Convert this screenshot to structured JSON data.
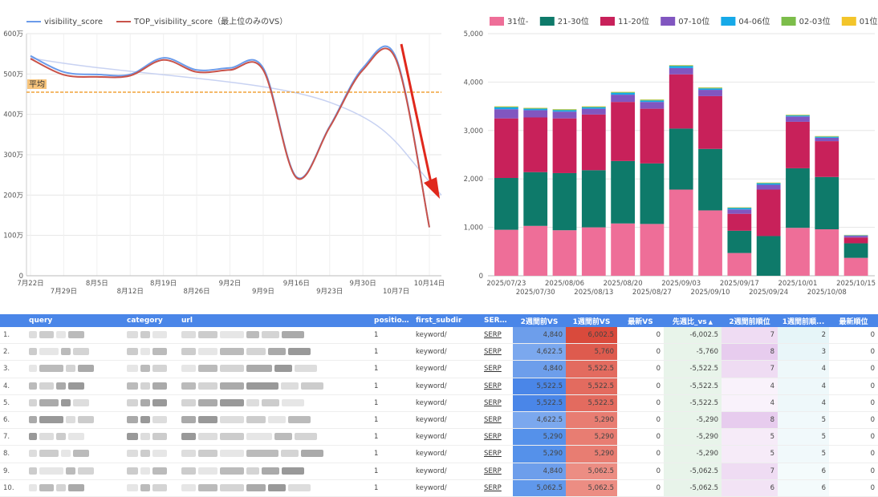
{
  "line_chart": {
    "legend": [
      {
        "name": "visibility_score",
        "color": "#6b9bea"
      },
      {
        "name": "TOP_visibility_score（最上位のみのVS）",
        "color": "#c9534a"
      }
    ],
    "avg_label": "平均",
    "y_ticks": [
      "600万",
      "500万",
      "400万",
      "300万",
      "200万",
      "100万",
      "0"
    ],
    "x_ticks_top": [
      "7月22日",
      "8月5日",
      "8月19日",
      "9月2日",
      "9月16日",
      "9月30日",
      "10月14日"
    ],
    "x_ticks_bottom": [
      "7月29日",
      "8月12日",
      "8月26日",
      "9月9日",
      "9月23日",
      "10月7日"
    ],
    "chart_data": {
      "type": "line",
      "ylim": [
        0,
        6000000
      ],
      "average": 4550000,
      "x": [
        "7/22",
        "7/29",
        "8/5",
        "8/12",
        "8/19",
        "8/26",
        "9/2",
        "9/9",
        "9/16",
        "9/23",
        "9/30",
        "10/7",
        "10/14"
      ],
      "series": [
        {
          "name": "visibility_score",
          "values": [
            5450000,
            5050000,
            4990000,
            4990000,
            5400000,
            5100000,
            5150000,
            5150000,
            2450000,
            3700000,
            5150000,
            5400000,
            1200000
          ]
        },
        {
          "name": "TOP_visibility_score（最上位のみのVS）",
          "values": [
            5380000,
            4980000,
            4930000,
            4960000,
            5350000,
            5050000,
            5100000,
            5100000,
            2430000,
            3680000,
            5100000,
            5350000,
            1200000
          ]
        }
      ]
    }
  },
  "bar_chart": {
    "legend": [
      {
        "name": "31位-",
        "color": "#ee6e98"
      },
      {
        "name": "21-30位",
        "color": "#0e7a6a"
      },
      {
        "name": "11-20位",
        "color": "#c8215a"
      },
      {
        "name": "07-10位",
        "color": "#8156c0"
      },
      {
        "name": "04-06位",
        "color": "#16a9e8"
      },
      {
        "name": "02-03位",
        "color": "#7cbd4a"
      },
      {
        "name": "01位",
        "color": "#f3c52a"
      }
    ],
    "y_ticks": [
      "5,000",
      "4,000",
      "3,000",
      "2,000",
      "1,000",
      "0"
    ],
    "x_ticks_top": [
      "2025/07/23",
      "2025/08/06",
      "2025/08/20",
      "2025/09/03",
      "2025/09/17",
      "2025/10/01",
      "2025/10/15"
    ],
    "x_ticks_bottom": [
      "2025/07/30",
      "2025/08/13",
      "2025/08/27",
      "2025/09/10",
      "2025/09/24",
      "2025/10/08"
    ],
    "chart_data": {
      "type": "bar",
      "stacked": true,
      "ylim": [
        0,
        5000
      ],
      "categories": [
        "2025/07/23",
        "2025/07/30",
        "2025/08/06",
        "2025/08/13",
        "2025/08/20",
        "2025/08/27",
        "2025/09/03",
        "2025/09/10",
        "2025/09/17",
        "2025/09/24",
        "2025/10/01",
        "2025/10/08",
        "2025/10/15"
      ],
      "series": [
        {
          "name": "31位-",
          "values": [
            950,
            1030,
            940,
            1000,
            1080,
            1070,
            1780,
            1350,
            470,
            0,
            990,
            960,
            370
          ]
        },
        {
          "name": "21-30位",
          "values": [
            1070,
            1110,
            1180,
            1180,
            1290,
            1250,
            1260,
            1270,
            460,
            820,
            1230,
            1080,
            300
          ]
        },
        {
          "name": "11-20位",
          "values": [
            1230,
            1130,
            1130,
            1150,
            1220,
            1130,
            1120,
            1090,
            350,
            960,
            960,
            740,
            120
          ]
        },
        {
          "name": "07-10位",
          "values": [
            190,
            150,
            140,
            120,
            150,
            140,
            130,
            130,
            90,
            100,
            110,
            70,
            35
          ]
        },
        {
          "name": "04-06位",
          "values": [
            40,
            30,
            30,
            30,
            40,
            30,
            40,
            30,
            30,
            30,
            20,
            20,
            10
          ]
        },
        {
          "name": "02-03位",
          "values": [
            15,
            15,
            15,
            15,
            15,
            15,
            15,
            15,
            10,
            10,
            10,
            10,
            5
          ]
        },
        {
          "name": "01位",
          "values": [
            5,
            5,
            5,
            5,
            5,
            5,
            5,
            5,
            5,
            5,
            5,
            5,
            5
          ]
        }
      ]
    }
  },
  "table": {
    "columns": [
      "",
      "query",
      "category",
      "url",
      "position...",
      "first_subdir",
      "SERP...",
      "2週間前VS",
      "1週間前VS",
      "最新VS",
      "先週比_vs",
      "2週間前順位",
      "1週間前順...",
      "最新順位"
    ],
    "sort_icon": "▲",
    "rows": [
      {
        "idx": "1.",
        "position": "1",
        "subdir": "keyword/",
        "serp": "SERP",
        "vs2": "4,840",
        "vs1": "6,002.5",
        "vs0": "0",
        "diff": "-6,002.5",
        "r2": "7",
        "r1": "2",
        "r0": "0"
      },
      {
        "idx": "2.",
        "position": "1",
        "subdir": "keyword/",
        "serp": "SERP",
        "vs2": "4,622.5",
        "vs1": "5,760",
        "vs0": "0",
        "diff": "-5,760",
        "r2": "8",
        "r1": "3",
        "r0": "0"
      },
      {
        "idx": "3.",
        "position": "1",
        "subdir": "keyword/",
        "serp": "SERP",
        "vs2": "4,840",
        "vs1": "5,522.5",
        "vs0": "0",
        "diff": "-5,522.5",
        "r2": "7",
        "r1": "4",
        "r0": "0"
      },
      {
        "idx": "4.",
        "position": "1",
        "subdir": "keyword/",
        "serp": "SERP",
        "vs2": "5,522.5",
        "vs1": "5,522.5",
        "vs0": "0",
        "diff": "-5,522.5",
        "r2": "4",
        "r1": "4",
        "r0": "0"
      },
      {
        "idx": "5.",
        "position": "1",
        "subdir": "keyword/",
        "serp": "SERP",
        "vs2": "5,522.5",
        "vs1": "5,522.5",
        "vs0": "0",
        "diff": "-5,522.5",
        "r2": "4",
        "r1": "4",
        "r0": "0"
      },
      {
        "idx": "6.",
        "position": "1",
        "subdir": "keyword/",
        "serp": "SERP",
        "vs2": "4,622.5",
        "vs1": "5,290",
        "vs0": "0",
        "diff": "-5,290",
        "r2": "8",
        "r1": "5",
        "r0": "0"
      },
      {
        "idx": "7.",
        "position": "1",
        "subdir": "keyword/",
        "serp": "SERP",
        "vs2": "5,290",
        "vs1": "5,290",
        "vs0": "0",
        "diff": "-5,290",
        "r2": "5",
        "r1": "5",
        "r0": "0"
      },
      {
        "idx": "8.",
        "position": "1",
        "subdir": "keyword/",
        "serp": "SERP",
        "vs2": "5,290",
        "vs1": "5,290",
        "vs0": "0",
        "diff": "-5,290",
        "r2": "5",
        "r1": "5",
        "r0": "0"
      },
      {
        "idx": "9.",
        "position": "1",
        "subdir": "keyword/",
        "serp": "SERP",
        "vs2": "4,840",
        "vs1": "5,062.5",
        "vs0": "0",
        "diff": "-5,062.5",
        "r2": "7",
        "r1": "6",
        "r0": "0"
      },
      {
        "idx": "10.",
        "position": "1",
        "subdir": "keyword/",
        "serp": "SERP",
        "vs2": "5,062.5",
        "vs1": "5,062.5",
        "vs0": "0",
        "diff": "-5,062.5",
        "r2": "6",
        "r1": "6",
        "r0": "0"
      }
    ]
  },
  "annotation": {
    "arrow_color": "#e0281c"
  }
}
